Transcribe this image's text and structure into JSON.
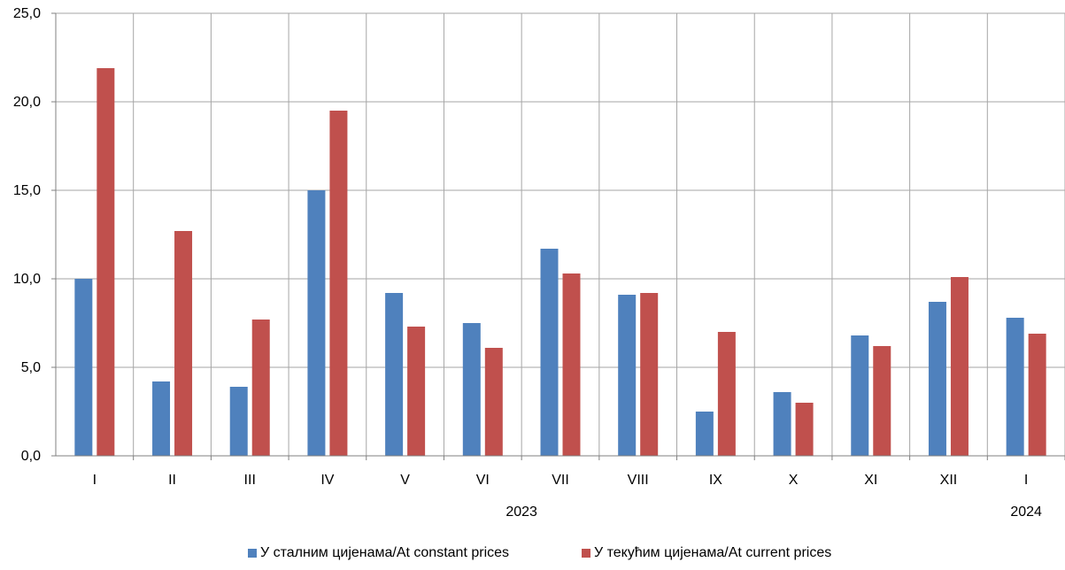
{
  "chart_data": {
    "type": "bar",
    "categories": [
      "I",
      "II",
      "III",
      "IV",
      "V",
      "VI",
      "VII",
      "VIII",
      "IX",
      "X",
      "XI",
      "XII",
      "I"
    ],
    "year_labels": [
      {
        "label": "2023",
        "from": 0,
        "to": 11
      },
      {
        "label": "2024",
        "from": 12,
        "to": 12
      }
    ],
    "series": [
      {
        "name": "У сталним цијенама/At constant prices",
        "color": "#4f81bd",
        "values": [
          10.0,
          4.2,
          3.9,
          15.0,
          9.2,
          7.5,
          11.7,
          9.1,
          2.5,
          3.6,
          6.8,
          8.7,
          7.8
        ]
      },
      {
        "name": "У текућим цијенама/At current prices",
        "color": "#c0504d",
        "values": [
          21.9,
          12.7,
          7.7,
          19.5,
          7.3,
          6.1,
          10.3,
          9.2,
          7.0,
          3.0,
          6.2,
          10.1,
          6.9
        ]
      }
    ],
    "ylim": [
      0,
      25
    ],
    "yticks": [
      "0,0",
      "5,0",
      "10,0",
      "15,0",
      "20,0",
      "25,0"
    ],
    "grid": true,
    "legend_position": "bottom"
  }
}
